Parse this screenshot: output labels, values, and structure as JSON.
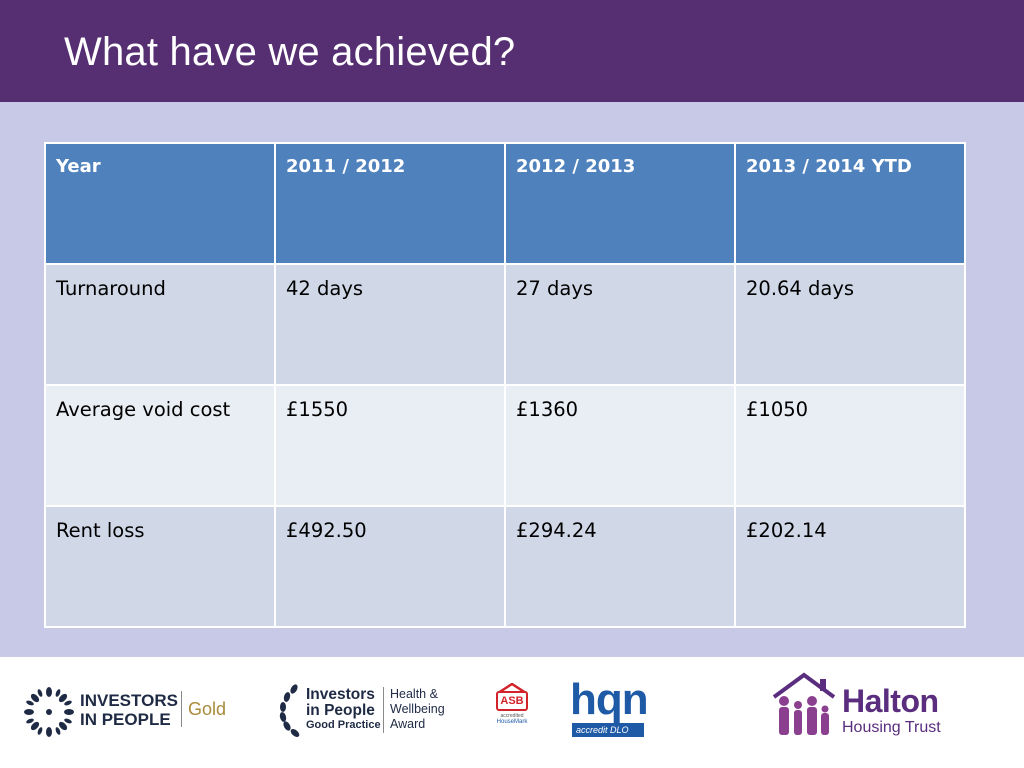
{
  "slide": {
    "title": "What have we achieved?"
  },
  "table": {
    "headers": [
      "Year",
      "2011 / 2012",
      "2012 / 2013",
      "2013 / 2014  YTD"
    ],
    "rows": [
      [
        "Turnaround",
        "42 days",
        "27 days",
        "20.64 days"
      ],
      [
        "Average void cost",
        "£1550",
        "£1360",
        "£1050"
      ],
      [
        "Rent loss",
        "£492.50",
        "£294.24",
        "£202.14"
      ]
    ]
  },
  "footer": {
    "logos": {
      "investors_gold": {
        "line1": "INVESTORS",
        "line2": "IN PEOPLE",
        "tier": "Gold"
      },
      "investors_health": {
        "line1": "Investors",
        "line2": "in People",
        "line3": "Good Practice",
        "award1": "Health &",
        "award2": "Wellbeing",
        "award3": "Award"
      },
      "asb": {
        "tag": "ASB",
        "small": "accredited",
        "org": "HouseMark"
      },
      "hqn": {
        "mark": "hqn",
        "sub": "accredit DLO"
      },
      "halton": {
        "name": "Halton",
        "sub": "Housing Trust"
      }
    },
    "colors": {
      "purple": "#562e72",
      "table_header": "#4f81bd",
      "halton_purple": "#5a2d7f"
    }
  }
}
